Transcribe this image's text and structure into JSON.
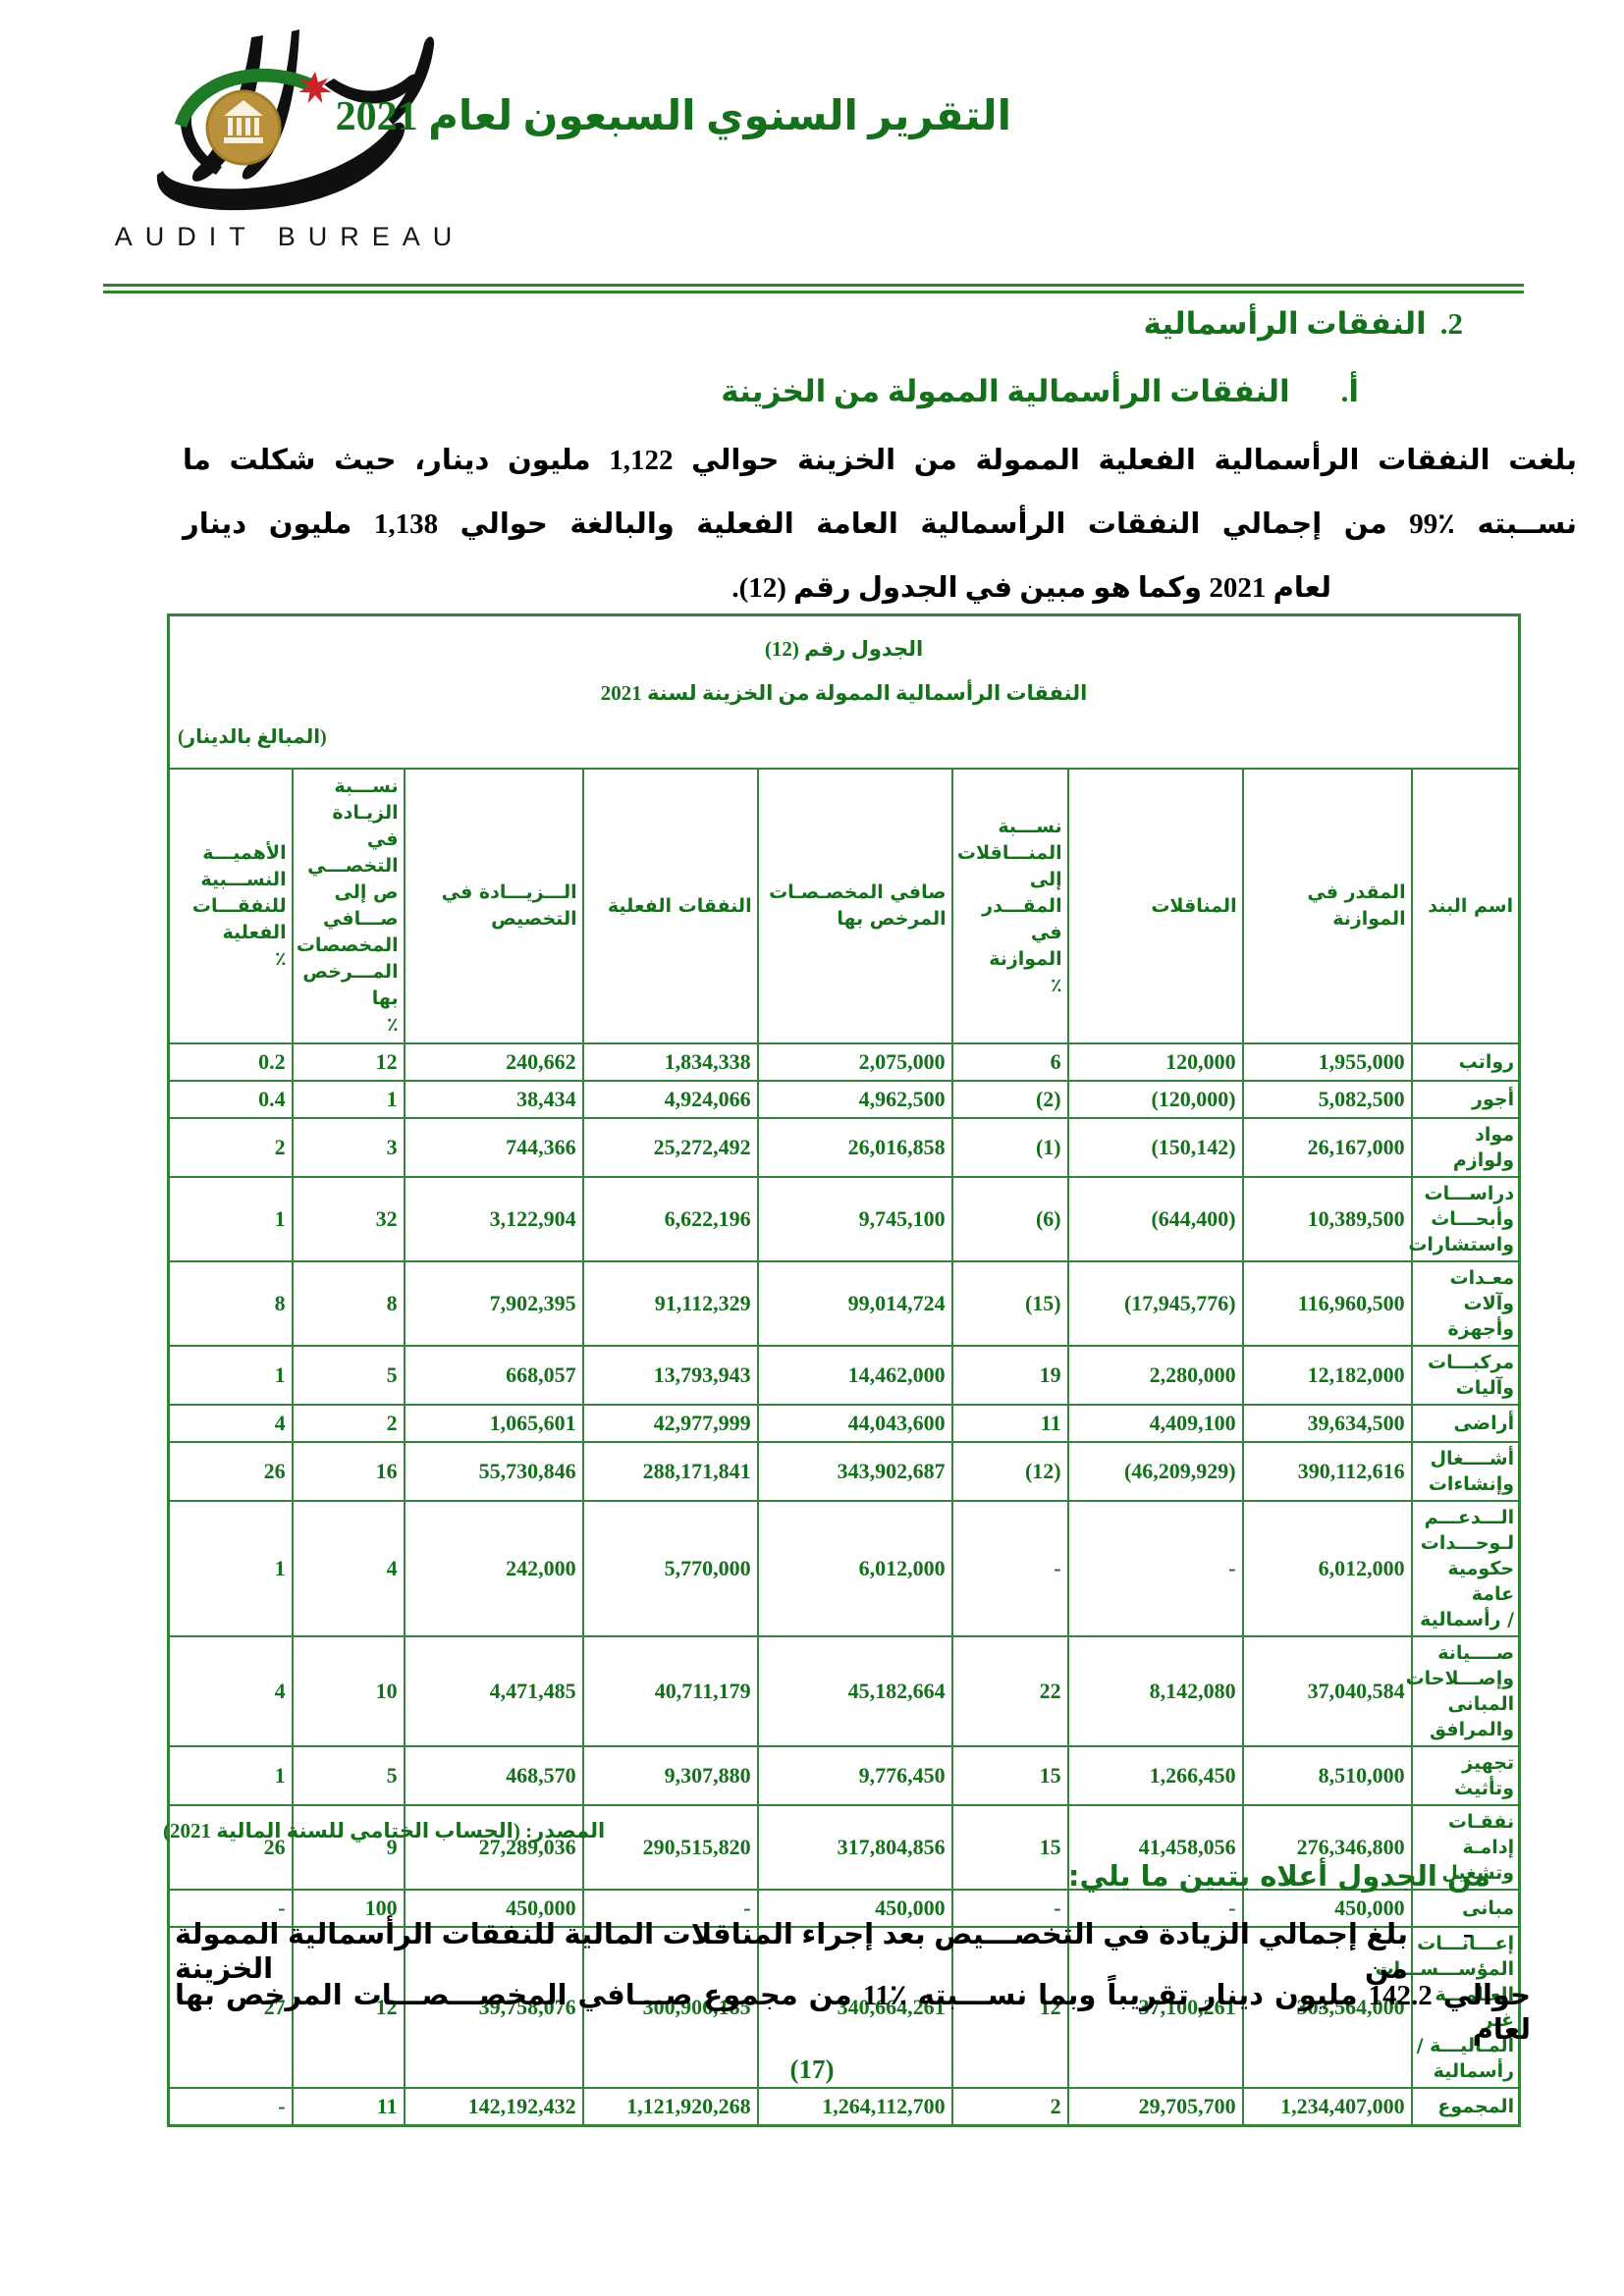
{
  "colors": {
    "accent_green": "#15701c",
    "table_border_green": "#37823a",
    "star_red": "#cc2229",
    "emblem_gold": "#b9923b"
  },
  "header": {
    "logo_subtext": "AUDIT BUREAU",
    "report_title": "التقرير السنوي السبعون لعام 2021"
  },
  "section": {
    "number": "2.",
    "title": "النفقات الرأسمالية"
  },
  "subsection": {
    "letter": "أ.",
    "title": "النفقات الرأسمالية الممولة من الخزينة"
  },
  "intro": {
    "lines": [
      "بلغت النفقات الرأسمالية الفعلية الممولة من الخزينة حوالي 1,122 مليون دينار، حيث شكلت ما",
      "نســبته ٪99 من إجمالي النفقات الرأسمالية العامة الفعلية والبالغة حوالي 1,138 مليون دينار",
      "لعام 2021 وكما هو مبين في الجدول رقم (12)."
    ]
  },
  "table": {
    "title_line1": "الجدول رقم (12)",
    "title_line2": "النفقات الرأسمالية الممولة من الخزينة لسنة 2021",
    "currency_note": "(المبالغ بالدينار)",
    "headers": [
      "اسم البند",
      "المقدر في الموازنة",
      "المناقلات",
      "نســـبة\nالمنـــاقلات\nإلى المقـــدر\nفي الموازنة\n٪",
      "صافي المخصـصـات\nالمرخص بها",
      "النفقات الفعلية",
      "الـــزيـــادة في\nالتخصيص",
      "نســـبة\nالزيـادة في\nالتخصـــي\nص إلى\nصـــافي\nالمخصصات\nالمـــرخص\nبها\n٪",
      "الأهميـــة\nالنســـبية\nللنفقـــات\nالفعلية\n٪"
    ],
    "rows": [
      [
        "رواتب",
        "1,955,000",
        "120,000",
        "6",
        "2,075,000",
        "1,834,338",
        "240,662",
        "12",
        "0.2"
      ],
      [
        "أجور",
        "5,082,500",
        "(120,000)",
        "(2)",
        "4,962,500",
        "4,924,066",
        "38,434",
        "1",
        "0.4"
      ],
      [
        "مواد ولوازم",
        "26,167,000",
        "(150,142)",
        "(1)",
        "26,016,858",
        "25,272,492",
        "744,366",
        "3",
        "2"
      ],
      [
        "دراســـات\nوأبحـــاث\nواستشارات",
        "10,389,500",
        "(644,400)",
        "(6)",
        "9,745,100",
        "6,622,196",
        "3,122,904",
        "32",
        "1"
      ],
      [
        "معـدات وآلات\nوأجهزة",
        "116,960,500",
        "(17,945,776)",
        "(15)",
        "99,014,724",
        "91,112,329",
        "7,902,395",
        "8",
        "8"
      ],
      [
        "مركبـــات\nوآليات",
        "12,182,000",
        "2,280,000",
        "19",
        "14,462,000",
        "13,793,943",
        "668,057",
        "5",
        "1"
      ],
      [
        "أراضى",
        "39,634,500",
        "4,409,100",
        "11",
        "44,043,600",
        "42,977,999",
        "1,065,601",
        "2",
        "4"
      ],
      [
        "أشــــغال\nوإنشاءات",
        "390,112,616",
        "(46,209,929)",
        "(12)",
        "343,902,687",
        "288,171,841",
        "55,730,846",
        "16",
        "26"
      ],
      [
        "الـــدعـــم\nلـوحـــدات\nحكومية عامة\n/ رأسمالية",
        "6,012,000",
        "-",
        "-",
        "6,012,000",
        "5,770,000",
        "242,000",
        "4",
        "1"
      ],
      [
        "صــــيانة\nوإصـــلاحات\nالمبانى والمرافق",
        "37,040,584",
        "8,142,080",
        "22",
        "45,182,664",
        "40,711,179",
        "4,471,485",
        "10",
        "4"
      ],
      [
        "تجهيز وتأثيث",
        "8,510,000",
        "1,266,450",
        "15",
        "9,776,450",
        "9,307,880",
        "468,570",
        "5",
        "1"
      ],
      [
        "نفقـات إدامـة\nوتشغيل",
        "276,346,800",
        "41,458,056",
        "15",
        "317,804,856",
        "290,515,820",
        "27,289,036",
        "9",
        "26"
      ],
      [
        "مبانى",
        "450,000",
        "-",
        "-",
        "450,000",
        "-",
        "450,000",
        "100",
        "-"
      ],
      [
        "إعـــانـــات\nالمؤســـســـات\nالعـامـــة غير\nالمـاليـــة /\nرأسمالية",
        "303,564,000",
        "37,100,261",
        "12",
        "340,664,261",
        "300,906,185",
        "39,758,076",
        "12",
        "27"
      ],
      [
        "المجموع",
        "1,234,407,000",
        "29,705,700",
        "2",
        "1,264,112,700",
        "1,121,920,268",
        "142,192,432",
        "11",
        "-"
      ]
    ]
  },
  "source_note": "المصدر: (الحساب الختامي للسنة المالية 2021)",
  "findings_heading": "من الجدول أعلاه يتبين ما يلي:",
  "bullet": {
    "dash": "-",
    "line1": "بلغ إجمالي الزيادة في التخصـــيص بعد إجراء المناقلات المالية للنفقات الرأسمالية الممولة من الخزينة",
    "line2": "حوالي 142.2 مليون دينار تقريباً وبما نســـبته ٪11 من مجموع صـــافي المخصـــصـــات المرخص بها لعام"
  },
  "page_number": "(17)"
}
